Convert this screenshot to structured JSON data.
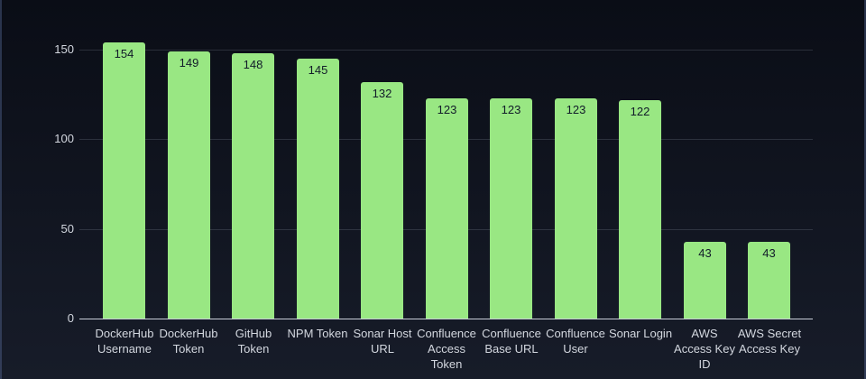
{
  "chart_data": {
    "type": "bar",
    "title": "",
    "categories": [
      "DockerHub Username",
      "DockerHub Token",
      "GitHub Token",
      "NPM Token",
      "Sonar Host URL",
      "Confluence Access Token",
      "Confluence Base URL",
      "Confluence User",
      "Sonar Login",
      "AWS Access Key ID",
      "AWS Secret Access Key"
    ],
    "category_lines": [
      [
        "DockerHub",
        "Username"
      ],
      [
        "DockerHub",
        "Token"
      ],
      [
        "GitHub",
        "Token"
      ],
      [
        "NPM Token"
      ],
      [
        "Sonar Host",
        "URL"
      ],
      [
        "Confluence",
        "Access",
        "Token"
      ],
      [
        "Confluence",
        "Base URL"
      ],
      [
        "Confluence",
        "User"
      ],
      [
        "Sonar Login"
      ],
      [
        "AWS",
        "Access Key",
        "ID"
      ],
      [
        "AWS Secret",
        "Access Key"
      ]
    ],
    "values": [
      154,
      149,
      148,
      145,
      132,
      123,
      123,
      123,
      122,
      43,
      43
    ],
    "yticks": [
      0,
      50,
      100,
      150
    ],
    "ylim": [
      0,
      160
    ],
    "xlabel": "",
    "ylabel": "",
    "grid": true,
    "legend": false,
    "colors": {
      "bar": "#99e783",
      "bar_value_text": "#111b29",
      "axis_text": "#d3d7df",
      "gridline": "rgba(202, 211, 230, 0.16)",
      "baseline": "#c9ced8",
      "background_top": "#0a0d16",
      "background_bottom": "#171c29"
    }
  }
}
